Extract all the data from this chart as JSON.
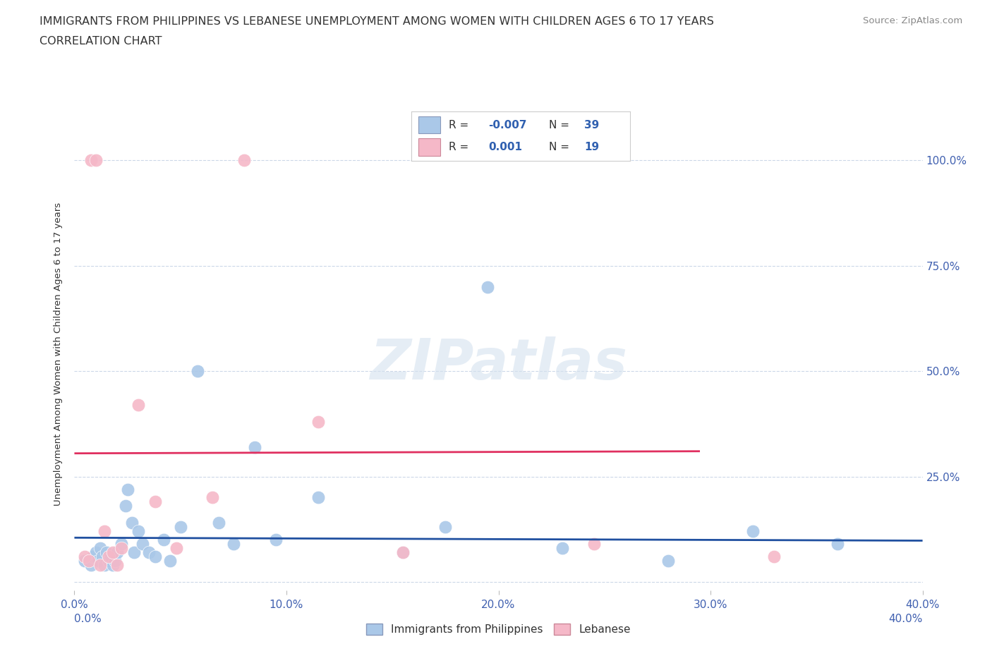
{
  "title_line1": "IMMIGRANTS FROM PHILIPPINES VS LEBANESE UNEMPLOYMENT AMONG WOMEN WITH CHILDREN AGES 6 TO 17 YEARS",
  "title_line2": "CORRELATION CHART",
  "source": "Source: ZipAtlas.com",
  "ylabel": "Unemployment Among Women with Children Ages 6 to 17 years",
  "xlim": [
    0.0,
    0.4
  ],
  "ylim": [
    -0.02,
    1.1
  ],
  "xticks": [
    0.0,
    0.1,
    0.2,
    0.3,
    0.4
  ],
  "xticklabels": [
    "0.0%",
    "10.0%",
    "20.0%",
    "30.0%",
    "40.0%"
  ],
  "yticks": [
    0.0,
    0.25,
    0.5,
    0.75,
    1.0
  ],
  "yticklabels_right": [
    "",
    "25.0%",
    "50.0%",
    "75.0%",
    "100.0%"
  ],
  "blue_color": "#aac8e8",
  "pink_color": "#f5b8c8",
  "trend_blue_color": "#2050a0",
  "trend_pink_color": "#e03060",
  "watermark": "ZIPatlas",
  "legend_label_blue": "Immigrants from Philippines",
  "legend_label_pink": "Lebanese",
  "blue_x": [
    0.005,
    0.008,
    0.009,
    0.01,
    0.011,
    0.012,
    0.013,
    0.014,
    0.015,
    0.016,
    0.017,
    0.018,
    0.019,
    0.02,
    0.022,
    0.024,
    0.025,
    0.027,
    0.028,
    0.03,
    0.032,
    0.035,
    0.038,
    0.042,
    0.045,
    0.05,
    0.058,
    0.068,
    0.075,
    0.085,
    0.095,
    0.115,
    0.155,
    0.175,
    0.195,
    0.23,
    0.28,
    0.32,
    0.36
  ],
  "blue_y": [
    0.05,
    0.04,
    0.06,
    0.07,
    0.05,
    0.08,
    0.06,
    0.04,
    0.07,
    0.05,
    0.06,
    0.04,
    0.05,
    0.07,
    0.09,
    0.18,
    0.22,
    0.14,
    0.07,
    0.12,
    0.09,
    0.07,
    0.06,
    0.1,
    0.05,
    0.13,
    0.5,
    0.14,
    0.09,
    0.32,
    0.1,
    0.2,
    0.07,
    0.13,
    0.7,
    0.08,
    0.05,
    0.12,
    0.09
  ],
  "pink_x": [
    0.005,
    0.007,
    0.008,
    0.01,
    0.012,
    0.014,
    0.016,
    0.018,
    0.02,
    0.022,
    0.03,
    0.038,
    0.048,
    0.065,
    0.08,
    0.115,
    0.155,
    0.245,
    0.33
  ],
  "pink_y": [
    0.06,
    0.05,
    1.0,
    1.0,
    0.04,
    0.12,
    0.06,
    0.07,
    0.04,
    0.08,
    0.42,
    0.19,
    0.08,
    0.2,
    1.0,
    0.38,
    0.07,
    0.09,
    0.06
  ],
  "blue_trend_x": [
    0.0,
    0.4
  ],
  "blue_trend_y": [
    0.105,
    0.098
  ],
  "pink_trend_x": [
    0.0,
    0.295
  ],
  "pink_trend_y": [
    0.305,
    0.31
  ],
  "grid_color": "#ccd8e8",
  "title_color": "#333333",
  "tick_color": "#4060b0",
  "bg_color": "#ffffff",
  "scatter_size": 180
}
